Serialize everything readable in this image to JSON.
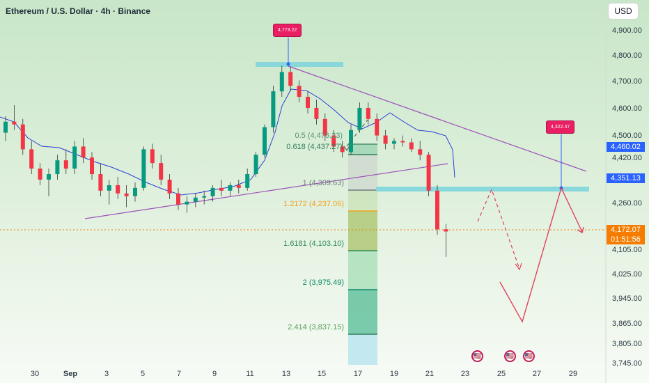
{
  "header": {
    "title": "Ethereum / U.S. Dollar · 4h · Binance",
    "currency": "USD"
  },
  "colors": {
    "up": "#089981",
    "down": "#f23645",
    "ma": "#2a3fd6",
    "trend": "#9c4fb8",
    "zone": "#7fd6dc",
    "arrow": "#e0425e",
    "current": "#f57c00",
    "blue_tag": "#2962ff"
  },
  "y_axis": {
    "ticks": [
      "4,900.00",
      "4,800.00",
      "4,700.00",
      "4,600.00",
      "4,500.00",
      "4,420.00",
      "4,260.00",
      "4,105.00",
      "4,025.00",
      "3,945.00",
      "3,865.00",
      "3,805.00",
      "3,745.00"
    ]
  },
  "x_axis": {
    "ticks": [
      {
        "label": "30",
        "bold": false
      },
      {
        "label": "Sep",
        "bold": true
      },
      {
        "label": "3",
        "bold": false
      },
      {
        "label": "5",
        "bold": false
      },
      {
        "label": "7",
        "bold": false
      },
      {
        "label": "9",
        "bold": false
      },
      {
        "label": "11",
        "bold": false
      },
      {
        "label": "13",
        "bold": false
      },
      {
        "label": "15",
        "bold": false
      },
      {
        "label": "17",
        "bold": false
      },
      {
        "label": "19",
        "bold": false
      },
      {
        "label": "21",
        "bold": false
      },
      {
        "label": "23",
        "bold": false
      },
      {
        "label": "25",
        "bold": false
      },
      {
        "label": "27",
        "bold": false
      },
      {
        "label": "29",
        "bold": false
      }
    ]
  },
  "price_tags": {
    "ma": "4,460.02",
    "zone": "4,351.13",
    "current": "4,172.07",
    "countdown": "01:51:56"
  },
  "callouts": {
    "high": "4,773.22",
    "target": "4,322.47"
  },
  "fib_levels": [
    {
      "label": "0.5 (4,476.23)",
      "color": "#5b8f74"
    },
    {
      "label": "0.618 (4,437.27)",
      "color": "#2e7d5b"
    },
    {
      "label": "1 (4,309.63)",
      "color": "#707a80"
    },
    {
      "label": "1.2172 (4,237.06)",
      "color": "#f0a020"
    },
    {
      "label": "1.6181 (4,103.10)",
      "color": "#2e8b57"
    },
    {
      "label": "2 (3,975.49)",
      "color": "#0d8a6a"
    },
    {
      "label": "2.414 (3,837.15)",
      "color": "#5aa05a"
    }
  ],
  "flag_icon": "🇺🇸",
  "chart_data": {
    "type": "candlestick",
    "title": "Ethereum / U.S. Dollar · 4h · Binance",
    "x_ticks": [
      "30",
      "Sep",
      "3",
      "5",
      "7",
      "9",
      "11",
      "13",
      "15",
      "17",
      "19",
      "21",
      "23",
      "25",
      "27",
      "29"
    ],
    "current_price": 4172.07,
    "recent_high": 4773.22,
    "target": 4322.47,
    "moving_average_last": 4460.02,
    "zone": 4351.13,
    "ohlc_samples": [
      {
        "x": 0,
        "o": 4530,
        "h": 4590,
        "l": 4500,
        "c": 4570
      },
      {
        "x": 1,
        "o": 4570,
        "h": 4630,
        "l": 4540,
        "c": 4560
      },
      {
        "x": 2,
        "o": 4560,
        "h": 4580,
        "l": 4450,
        "c": 4470
      },
      {
        "x": 3,
        "o": 4470,
        "h": 4500,
        "l": 4380,
        "c": 4400
      },
      {
        "x": 4,
        "o": 4400,
        "h": 4420,
        "l": 4340,
        "c": 4360
      },
      {
        "x": 5,
        "o": 4360,
        "h": 4400,
        "l": 4300,
        "c": 4380
      },
      {
        "x": 6,
        "o": 4380,
        "h": 4450,
        "l": 4360,
        "c": 4430
      },
      {
        "x": 7,
        "o": 4430,
        "h": 4470,
        "l": 4380,
        "c": 4400
      },
      {
        "x": 8,
        "o": 4400,
        "h": 4500,
        "l": 4380,
        "c": 4480
      },
      {
        "x": 9,
        "o": 4480,
        "h": 4510,
        "l": 4420,
        "c": 4440
      },
      {
        "x": 10,
        "o": 4440,
        "h": 4460,
        "l": 4360,
        "c": 4380
      },
      {
        "x": 11,
        "o": 4380,
        "h": 4420,
        "l": 4300,
        "c": 4320
      },
      {
        "x": 12,
        "o": 4320,
        "h": 4360,
        "l": 4270,
        "c": 4340
      },
      {
        "x": 13,
        "o": 4340,
        "h": 4370,
        "l": 4290,
        "c": 4310
      },
      {
        "x": 14,
        "o": 4310,
        "h": 4340,
        "l": 4260,
        "c": 4300
      },
      {
        "x": 15,
        "o": 4300,
        "h": 4350,
        "l": 4280,
        "c": 4330
      },
      {
        "x": 16,
        "o": 4330,
        "h": 4480,
        "l": 4320,
        "c": 4470
      },
      {
        "x": 17,
        "o": 4470,
        "h": 4490,
        "l": 4400,
        "c": 4420
      },
      {
        "x": 18,
        "o": 4420,
        "h": 4450,
        "l": 4340,
        "c": 4360
      },
      {
        "x": 19,
        "o": 4360,
        "h": 4380,
        "l": 4290,
        "c": 4310
      },
      {
        "x": 20,
        "o": 4310,
        "h": 4330,
        "l": 4250,
        "c": 4270
      },
      {
        "x": 21,
        "o": 4270,
        "h": 4300,
        "l": 4240,
        "c": 4280
      },
      {
        "x": 22,
        "o": 4280,
        "h": 4310,
        "l": 4260,
        "c": 4295
      },
      {
        "x": 23,
        "o": 4295,
        "h": 4320,
        "l": 4270,
        "c": 4300
      },
      {
        "x": 24,
        "o": 4300,
        "h": 4340,
        "l": 4280,
        "c": 4330
      },
      {
        "x": 25,
        "o": 4330,
        "h": 4360,
        "l": 4300,
        "c": 4320
      },
      {
        "x": 26,
        "o": 4320,
        "h": 4350,
        "l": 4300,
        "c": 4340
      },
      {
        "x": 27,
        "o": 4340,
        "h": 4360,
        "l": 4310,
        "c": 4330
      },
      {
        "x": 28,
        "o": 4330,
        "h": 4400,
        "l": 4320,
        "c": 4380
      },
      {
        "x": 29,
        "o": 4380,
        "h": 4460,
        "l": 4370,
        "c": 4450
      },
      {
        "x": 30,
        "o": 4450,
        "h": 4560,
        "l": 4440,
        "c": 4550
      },
      {
        "x": 31,
        "o": 4550,
        "h": 4700,
        "l": 4530,
        "c": 4680
      },
      {
        "x": 32,
        "o": 4680,
        "h": 4773,
        "l": 4660,
        "c": 4750
      },
      {
        "x": 33,
        "o": 4750,
        "h": 4770,
        "l": 4680,
        "c": 4700
      },
      {
        "x": 34,
        "o": 4700,
        "h": 4720,
        "l": 4640,
        "c": 4660
      },
      {
        "x": 35,
        "o": 4660,
        "h": 4680,
        "l": 4600,
        "c": 4620
      },
      {
        "x": 36,
        "o": 4620,
        "h": 4650,
        "l": 4560,
        "c": 4580
      },
      {
        "x": 37,
        "o": 4580,
        "h": 4600,
        "l": 4500,
        "c": 4520
      },
      {
        "x": 38,
        "o": 4520,
        "h": 4540,
        "l": 4460,
        "c": 4480
      },
      {
        "x": 39,
        "o": 4480,
        "h": 4500,
        "l": 4440,
        "c": 4460
      },
      {
        "x": 40,
        "o": 4460,
        "h": 4560,
        "l": 4450,
        "c": 4540
      },
      {
        "x": 41,
        "o": 4540,
        "h": 4640,
        "l": 4530,
        "c": 4620
      },
      {
        "x": 42,
        "o": 4620,
        "h": 4640,
        "l": 4560,
        "c": 4580
      },
      {
        "x": 43,
        "o": 4580,
        "h": 4600,
        "l": 4500,
        "c": 4520
      },
      {
        "x": 44,
        "o": 4520,
        "h": 4540,
        "l": 4470,
        "c": 4490
      },
      {
        "x": 45,
        "o": 4490,
        "h": 4510,
        "l": 4470,
        "c": 4500
      },
      {
        "x": 46,
        "o": 4500,
        "h": 4520,
        "l": 4480,
        "c": 4495
      },
      {
        "x": 47,
        "o": 4495,
        "h": 4510,
        "l": 4460,
        "c": 4470
      },
      {
        "x": 48,
        "o": 4470,
        "h": 4500,
        "l": 4430,
        "c": 4450
      },
      {
        "x": 49,
        "o": 4450,
        "h": 4460,
        "l": 4300,
        "c": 4320
      },
      {
        "x": 50,
        "o": 4320,
        "h": 4340,
        "l": 4160,
        "c": 4180
      },
      {
        "x": 51,
        "o": 4180,
        "h": 4200,
        "l": 4080,
        "c": 4172
      }
    ]
  }
}
